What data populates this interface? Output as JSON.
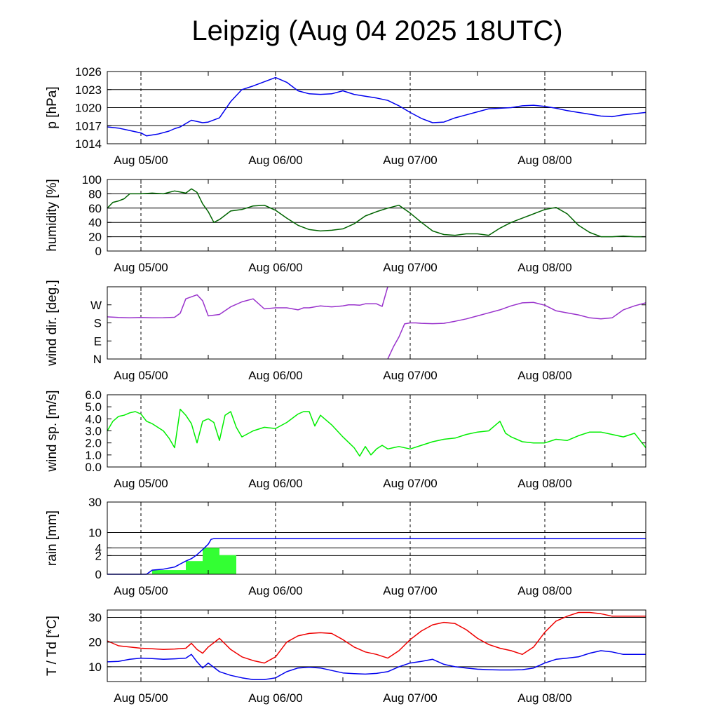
{
  "title": "Leipzig (Aug 04 2025 18UTC)",
  "chart_data": [
    {
      "type": "line",
      "ylabel": "p [hPa]",
      "ylim": [
        1014,
        1026
      ],
      "yticks": [
        "1014",
        "1017",
        "1020",
        "1023",
        "1026"
      ],
      "x_ticks": [
        "Aug 05/00",
        "Aug 06/00",
        "Aug 07/00",
        "Aug 08/00"
      ],
      "x_unit": "hours from Aug 04 18UTC",
      "xlim": [
        0,
        96
      ],
      "grid": true,
      "series": [
        {
          "color": "#0000ee",
          "x": [
            0,
            2,
            4,
            6,
            7,
            9,
            11,
            12,
            13,
            15,
            17,
            18,
            20,
            22,
            24,
            26,
            28,
            30,
            32,
            34,
            36,
            38,
            40,
            42,
            44,
            46,
            48,
            50,
            52,
            54,
            56,
            58,
            60,
            62,
            64,
            66,
            68,
            70,
            72,
            74,
            76,
            78,
            80,
            82,
            84,
            86,
            88,
            90,
            92,
            94,
            96
          ],
          "y": [
            1016.8,
            1016.6,
            1016.2,
            1015.8,
            1015.3,
            1015.6,
            1016.1,
            1016.5,
            1016.8,
            1017.9,
            1017.5,
            1017.6,
            1018.3,
            1021.0,
            1023.0,
            1023.6,
            1024.3,
            1025.0,
            1024.2,
            1022.8,
            1022.3,
            1022.2,
            1022.3,
            1022.8,
            1022.2,
            1021.9,
            1021.6,
            1021.2,
            1020.3,
            1019.2,
            1018.2,
            1017.5,
            1017.6,
            1018.3,
            1018.8,
            1019.3,
            1019.8,
            1019.9,
            1020.0,
            1020.3,
            1020.4,
            1020.2,
            1019.9,
            1019.5,
            1019.2,
            1018.9,
            1018.6,
            1018.5,
            1018.8,
            1019.0,
            1019.2
          ]
        }
      ]
    },
    {
      "type": "line",
      "ylabel": "humidity [%]",
      "ylim": [
        0,
        100
      ],
      "yticks": [
        "0",
        "20",
        "40",
        "60",
        "80",
        "100"
      ],
      "x_ticks": [
        "Aug 05/00",
        "Aug 06/00",
        "Aug 07/00",
        "Aug 08/00"
      ],
      "xlim": [
        0,
        96
      ],
      "grid": true,
      "series": [
        {
          "color": "#006400",
          "x": [
            0,
            1,
            2,
            3,
            4,
            5,
            6,
            8,
            10,
            12,
            14,
            15,
            16,
            17,
            18,
            19,
            20,
            22,
            24,
            26,
            28,
            30,
            32,
            34,
            36,
            38,
            40,
            42,
            44,
            46,
            48,
            50,
            52,
            54,
            56,
            58,
            60,
            62,
            64,
            66,
            68,
            70,
            72,
            74,
            76,
            78,
            80,
            82,
            84,
            86,
            88,
            90,
            92,
            94,
            96
          ],
          "y": [
            60,
            68,
            70,
            73,
            80,
            80,
            80,
            81,
            80,
            84,
            81,
            87,
            82,
            66,
            55,
            40,
            44,
            56,
            58,
            63,
            64,
            57,
            46,
            36,
            30,
            28,
            29,
            31,
            38,
            49,
            55,
            60,
            64,
            53,
            40,
            28,
            23,
            22,
            24,
            24,
            22,
            32,
            40,
            46,
            52,
            58,
            61,
            52,
            36,
            26,
            20,
            20,
            21,
            20,
            20
          ]
        }
      ]
    },
    {
      "type": "line",
      "ylabel": "wind dir. [deg.]",
      "ylim": [
        0,
        360
      ],
      "yticks": [
        "N",
        "E",
        "S",
        "W"
      ],
      "ytick_values": [
        0,
        90,
        180,
        270
      ],
      "x_ticks": [
        "Aug 05/00",
        "Aug 06/00",
        "Aug 07/00",
        "Aug 08/00"
      ],
      "xlim": [
        0,
        96
      ],
      "grid": false,
      "series": [
        {
          "color": "#9932cc",
          "segments": [
            {
              "x": [
                0,
                2,
                4,
                6,
                8,
                10,
                12,
                13,
                14,
                16,
                17,
                18,
                20,
                22,
                24,
                26,
                28,
                30,
                32,
                34,
                35,
                36,
                37,
                38,
                39,
                40,
                41,
                42,
                43,
                44,
                45,
                46,
                47,
                48,
                49,
                50
              ],
              "y": [
                210,
                207,
                205,
                207,
                205,
                206,
                208,
                228,
                300,
                320,
                290,
                215,
                222,
                260,
                285,
                300,
                250,
                255,
                255,
                245,
                255,
                255,
                260,
                265,
                262,
                260,
                262,
                265,
                270,
                270,
                268,
                275,
                275,
                275,
                262,
                360
              ]
            },
            {
              "x": [
                50,
                51,
                52,
                53,
                54,
                55,
                56,
                58,
                60,
                62,
                64,
                66,
                68,
                70,
                72,
                74,
                76,
                78,
                80,
                82,
                84,
                86,
                88,
                90,
                92,
                94,
                96
              ],
              "y": [
                0,
                60,
                110,
                175,
                180,
                180,
                178,
                176,
                178,
                188,
                200,
                215,
                230,
                245,
                265,
                280,
                282,
                268,
                240,
                230,
                220,
                205,
                200,
                205,
                245,
                265,
                280
              ]
            }
          ]
        }
      ]
    },
    {
      "type": "line",
      "ylabel": "wind sp. [m/s]",
      "ylim": [
        0,
        6
      ],
      "yticks": [
        "0.0",
        "1.0",
        "2.0",
        "3.0",
        "4.0",
        "5.0",
        "6.0"
      ],
      "x_ticks": [
        "Aug 05/00",
        "Aug 06/00",
        "Aug 07/00",
        "Aug 08/00"
      ],
      "xlim": [
        0,
        96
      ],
      "grid": false,
      "series": [
        {
          "color": "#00ee00",
          "x": [
            0,
            1,
            2,
            3,
            4,
            5,
            6,
            7,
            8,
            9,
            10,
            11,
            12,
            13,
            14,
            15,
            16,
            17,
            18,
            19,
            20,
            21,
            22,
            23,
            24,
            26,
            28,
            30,
            32,
            34,
            35,
            36,
            37,
            38,
            40,
            42,
            44,
            45,
            46,
            47,
            48,
            49,
            50,
            51,
            52,
            54,
            56,
            58,
            60,
            62,
            64,
            66,
            68,
            70,
            71,
            72,
            74,
            76,
            78,
            80,
            82,
            84,
            86,
            88,
            90,
            92,
            94,
            96
          ],
          "y": [
            3.0,
            3.8,
            4.2,
            4.3,
            4.5,
            4.6,
            4.4,
            3.8,
            3.6,
            3.3,
            3.0,
            2.4,
            1.6,
            4.8,
            4.3,
            3.6,
            2.0,
            3.8,
            4.0,
            3.7,
            2.2,
            4.3,
            4.6,
            3.3,
            2.5,
            3.0,
            3.3,
            3.2,
            3.7,
            4.4,
            4.6,
            4.6,
            3.4,
            4.3,
            3.5,
            2.5,
            1.6,
            0.9,
            1.7,
            1.0,
            1.5,
            1.8,
            1.5,
            1.6,
            1.7,
            1.5,
            1.8,
            2.1,
            2.3,
            2.4,
            2.7,
            2.9,
            3.0,
            3.8,
            2.8,
            2.5,
            2.1,
            2.0,
            2.0,
            2.3,
            2.2,
            2.6,
            2.9,
            2.9,
            2.7,
            2.5,
            2.8,
            1.6
          ]
        }
      ]
    },
    {
      "type": "bar",
      "ylabel": "rain [mm]",
      "ylim_sqrt": [
        0,
        30
      ],
      "yticks": [
        "0",
        "2",
        "4",
        "10",
        "30"
      ],
      "ytick_values": [
        0,
        2,
        4,
        10,
        30
      ],
      "x_ticks": [
        "Aug 05/00",
        "Aug 06/00",
        "Aug 07/00",
        "Aug 08/00"
      ],
      "xlim": [
        0,
        96
      ],
      "grid": true,
      "bars": {
        "color": "#33ff33",
        "bins": [
          {
            "x0": 8,
            "x1": 14,
            "value": 0.1
          },
          {
            "x0": 14,
            "x1": 17,
            "value": 1.0
          },
          {
            "x0": 17,
            "x1": 20,
            "value": 4.0
          },
          {
            "x0": 20,
            "x1": 23,
            "value": 2.1
          }
        ]
      },
      "series": [
        {
          "color": "#0000ee",
          "x": [
            0,
            6,
            7,
            8,
            10,
            12,
            13,
            14,
            15,
            16,
            17,
            18,
            18.5,
            19,
            96
          ],
          "y": [
            0,
            0,
            0,
            0.1,
            0.15,
            0.3,
            0.6,
            1.0,
            1.4,
            2.2,
            3.5,
            5.2,
            7.0,
            7.3,
            7.3
          ]
        }
      ]
    },
    {
      "type": "line",
      "ylabel": "T / Td [*C]",
      "ylim": [
        4,
        33
      ],
      "yticks": [
        "10",
        "20",
        "30"
      ],
      "x_ticks": [
        "Aug 05/00",
        "Aug 06/00",
        "Aug 07/00",
        "Aug 08/00"
      ],
      "xlim": [
        0,
        96
      ],
      "grid": true,
      "series": [
        {
          "color": "#ee0000",
          "x": [
            0,
            2,
            4,
            6,
            8,
            10,
            12,
            14,
            15,
            16,
            17,
            18,
            20,
            22,
            24,
            26,
            28,
            30,
            32,
            34,
            36,
            38,
            40,
            42,
            44,
            46,
            48,
            50,
            52,
            54,
            56,
            58,
            60,
            62,
            64,
            66,
            68,
            70,
            72,
            74,
            76,
            78,
            80,
            82,
            84,
            86,
            88,
            90,
            92,
            94,
            96
          ],
          "y": [
            20.5,
            18.5,
            18.0,
            17.5,
            17.3,
            17.0,
            17.2,
            17.5,
            19.5,
            17.0,
            15.5,
            18.0,
            21.5,
            17.0,
            14.0,
            12.5,
            11.5,
            14.0,
            20.0,
            22.5,
            23.5,
            23.8,
            23.5,
            21.0,
            18.0,
            16.0,
            15.0,
            13.5,
            16.5,
            21.0,
            24.5,
            27.0,
            28.0,
            27.5,
            25.0,
            21.5,
            19.0,
            17.5,
            16.5,
            15.0,
            18.0,
            24.0,
            28.5,
            30.5,
            32.0,
            32.0,
            31.5,
            30.5,
            30.5,
            30.5,
            30.5
          ]
        },
        {
          "color": "#0000ee",
          "x": [
            0,
            2,
            4,
            6,
            8,
            10,
            12,
            14,
            15,
            16,
            17,
            18,
            20,
            22,
            24,
            26,
            28,
            30,
            32,
            34,
            36,
            38,
            40,
            42,
            44,
            46,
            48,
            50,
            52,
            54,
            56,
            58,
            60,
            62,
            64,
            66,
            68,
            70,
            72,
            74,
            76,
            78,
            80,
            82,
            84,
            86,
            88,
            90,
            92,
            94,
            96
          ],
          "y": [
            12.0,
            12.2,
            13.0,
            13.5,
            13.3,
            13.0,
            13.2,
            13.5,
            15.0,
            12.0,
            9.5,
            11.5,
            8.0,
            6.5,
            5.5,
            4.8,
            4.8,
            5.5,
            8.0,
            9.5,
            9.8,
            9.5,
            8.5,
            7.5,
            7.2,
            7.0,
            7.3,
            8.0,
            10.0,
            11.5,
            12.2,
            13.0,
            11.0,
            10.0,
            9.5,
            9.0,
            8.8,
            8.7,
            8.7,
            8.8,
            9.5,
            11.5,
            13.0,
            13.5,
            14.0,
            15.5,
            16.5,
            16.0,
            15.0,
            15.0,
            15.0
          ]
        }
      ]
    }
  ]
}
